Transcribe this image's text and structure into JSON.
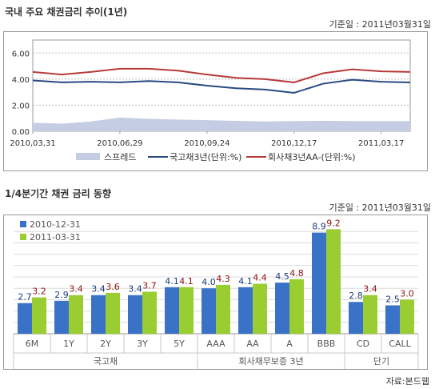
{
  "section1": {
    "title": "국내 주요 채권금리 추이(1년)",
    "ref_date": "기준일 : 2011년03월31일"
  },
  "section2": {
    "title": "1/4분기간 채권 금리 동향",
    "ref_date": "기준일 : 2011년03월31일"
  },
  "source": "자료:본드웹",
  "colors": {
    "spread_fill": "#c4cde3",
    "ktb_line": "#2a4a82",
    "corp_line": "#b83a3a",
    "bar_2010": "#3a72c8",
    "bar_2011": "#9acd32",
    "label_2010": "#1b3a80",
    "label_2011": "#8b1010"
  },
  "chart_data": [
    {
      "type": "area",
      "yticks": [
        "6.00",
        "4.00",
        "2.00",
        "0.00"
      ],
      "ylim": [
        0,
        7
      ],
      "xticks": [
        "2010,03,31",
        "2010,06,29",
        "2010,09,24",
        "2010,12,17",
        "2011,03,17"
      ],
      "x": [
        "2010-03-31",
        "2010-04-30",
        "2010-05-31",
        "2010-06-29",
        "2010-07-30",
        "2010-08-31",
        "2010-09-24",
        "2010-10-29",
        "2010-11-30",
        "2010-12-17",
        "2011-01-14",
        "2011-02-15",
        "2011-03-17",
        "2011-03-31"
      ],
      "legend_position": "bottom",
      "series": [
        {
          "name": "스프레드",
          "values": [
            0.65,
            0.58,
            0.75,
            1.05,
            0.95,
            0.9,
            0.85,
            0.8,
            0.75,
            0.78,
            0.8,
            0.78,
            0.78,
            0.78
          ]
        },
        {
          "name": "국고채3년(단위:%)",
          "values": [
            3.9,
            3.75,
            3.8,
            3.75,
            3.85,
            3.75,
            3.5,
            3.3,
            3.2,
            2.95,
            3.65,
            3.95,
            3.8,
            3.75
          ]
        },
        {
          "name": "회사채3년AA-(단위:%)",
          "values": [
            4.55,
            4.35,
            4.55,
            4.8,
            4.8,
            4.65,
            4.35,
            4.1,
            4.0,
            3.75,
            4.45,
            4.75,
            4.6,
            4.55
          ]
        }
      ]
    },
    {
      "type": "bar",
      "categories": [
        "6M",
        "1Y",
        "2Y",
        "3Y",
        "5Y",
        "AAA",
        "AA",
        "A",
        "BBB",
        "CD",
        "CALL"
      ],
      "groups": [
        {
          "label": "국고채",
          "start": 0,
          "end": 4
        },
        {
          "label": "회사채무보증 3년",
          "start": 5,
          "end": 8
        },
        {
          "label": "단기",
          "start": 9,
          "end": 10
        }
      ],
      "ylim": [
        0,
        10
      ],
      "legend_position": "top-left",
      "series": [
        {
          "name": "2010-12-31",
          "values": [
            2.7,
            2.9,
            3.4,
            3.4,
            4.1,
            4.0,
            4.1,
            4.5,
            8.9,
            2.8,
            2.5
          ]
        },
        {
          "name": "2011-03-31",
          "values": [
            3.2,
            3.4,
            3.6,
            3.7,
            4.1,
            4.3,
            4.4,
            4.8,
            9.2,
            3.4,
            3.0
          ]
        }
      ]
    }
  ]
}
